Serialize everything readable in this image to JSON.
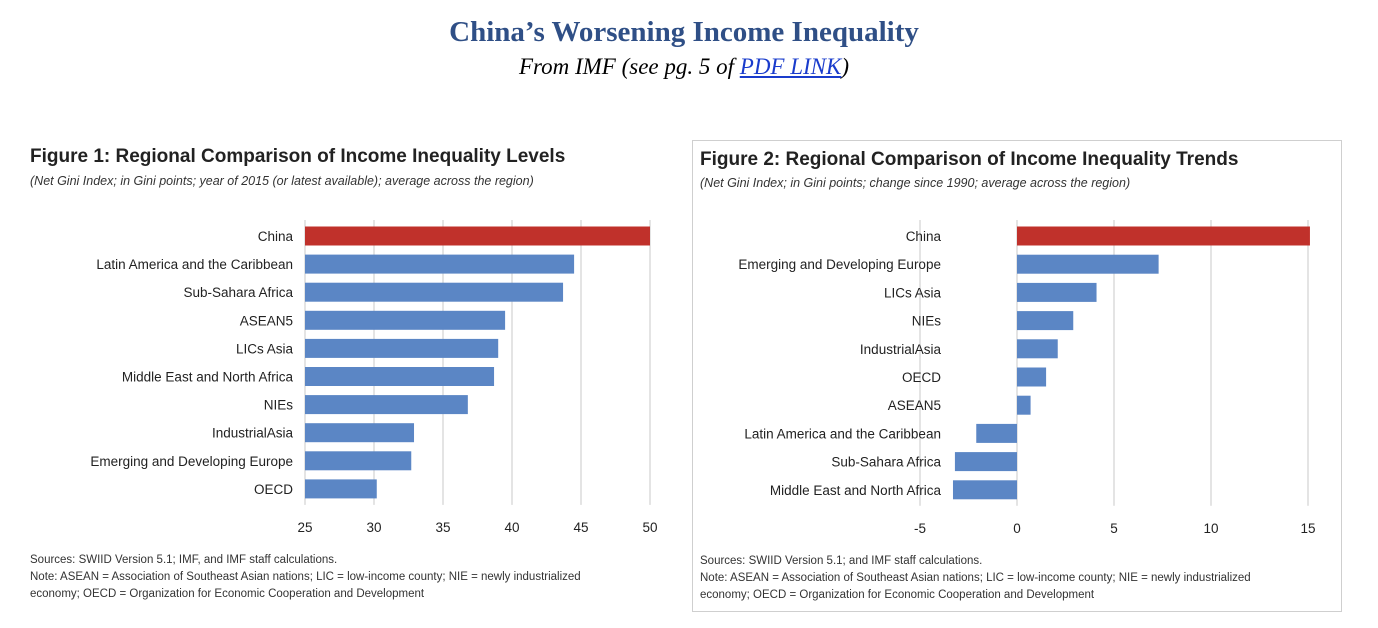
{
  "header": {
    "title": "China’s Worsening Income Inequality",
    "subtitle_prefix": "From IMF (see pg. 5 of ",
    "link_text": "PDF LINK",
    "subtitle_suffix": ")"
  },
  "colors": {
    "title": "#2f4f86",
    "bar": "#5b86c5",
    "highlight": "#c0312b",
    "grid": "#c8c8c8"
  },
  "chart_data": [
    {
      "type": "bar",
      "orientation": "horizontal",
      "title": "Figure 1: Regional Comparison of Income Inequality Levels",
      "subtitle": "(Net Gini Index; in Gini points; year of 2015 (or latest available); average across the region)",
      "categories": [
        "China",
        "Latin America and the Caribbean",
        "Sub-Sahara Africa",
        "ASEAN5",
        "LICs Asia",
        "Middle East and North Africa",
        "NIEs",
        "IndustrialAsia",
        "Emerging and Developing Europe",
        "OECD"
      ],
      "values": [
        50,
        44.5,
        43.7,
        39.5,
        39.0,
        38.7,
        36.8,
        32.9,
        32.7,
        30.2
      ],
      "highlight": "China",
      "xlim": [
        25,
        50
      ],
      "xticks": [
        25,
        30,
        35,
        40,
        45,
        50
      ],
      "grid": true,
      "sources": "Sources: SWIID Version 5.1; IMF, and IMF staff calculations.",
      "note_lines": [
        "Note: ASEAN = Association of Southeast Asian nations; LIC = low-income county; NIE = newly industrialized",
        "economy; OECD = Organization for Economic Cooperation and Development"
      ]
    },
    {
      "type": "bar",
      "orientation": "horizontal",
      "title": "Figure 2: Regional Comparison of Income Inequality Trends",
      "subtitle": "(Net Gini Index; in Gini points; change since 1990; average across the region)",
      "categories": [
        "China",
        "Emerging and Developing Europe",
        "LICs Asia",
        "NIEs",
        "IndustrialAsia",
        "OECD",
        "ASEAN5",
        "Latin America and the Caribbean",
        "Sub-Sahara Africa",
        "Middle East and North Africa"
      ],
      "values": [
        15.1,
        7.3,
        4.1,
        2.9,
        2.1,
        1.5,
        0.7,
        -2.1,
        -3.2,
        -3.3
      ],
      "highlight": "China",
      "xlim": [
        -5,
        15
      ],
      "xticks": [
        -5,
        0,
        5,
        10,
        15
      ],
      "grid": true,
      "sources": "Sources: SWIID Version 5.1; and IMF staff calculations.",
      "note_lines": [
        "Note: ASEAN = Association of Southeast Asian nations; LIC = low-income county; NIE = newly industrialized",
        "economy; OECD = Organization for Economic Cooperation and Development"
      ]
    }
  ]
}
